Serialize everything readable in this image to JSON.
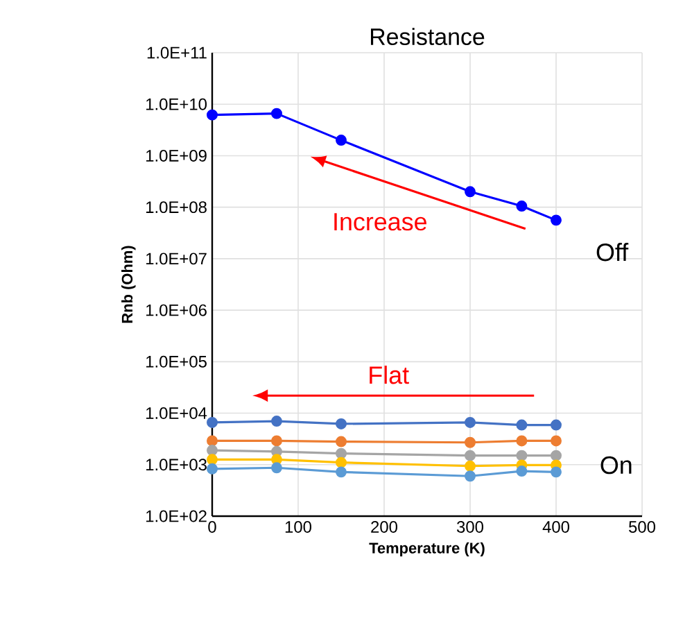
{
  "chart_data": {
    "type": "line",
    "title": "Resistance",
    "xlabel": "Temperature (K)",
    "ylabel": "Rnb (Ohm)",
    "x": [
      0,
      75,
      150,
      300,
      360,
      400
    ],
    "series": [
      {
        "color": "#0000ff",
        "values": [
          6200000000.0,
          6600000000.0,
          2000000000.0,
          200000000.0,
          105000000.0,
          56000000.0
        ]
      },
      {
        "color": "#4472c4",
        "values": [
          6600,
          7000,
          6200,
          6600,
          5900,
          5900
        ]
      },
      {
        "color": "#ed7d31",
        "values": [
          2900,
          2900,
          2800,
          2700,
          2900,
          2900
        ]
      },
      {
        "color": "#a5a5a5",
        "values": [
          1900,
          1800,
          1650,
          1500,
          1500,
          1500
        ]
      },
      {
        "color": "#ffc000",
        "values": [
          1260,
          1260,
          1100,
          940,
          980,
          980
        ]
      },
      {
        "color": "#5b9bd5",
        "values": [
          830,
          870,
          720,
          600,
          750,
          720
        ]
      }
    ],
    "xlim": [
      0,
      500
    ],
    "xticks": [
      0,
      100,
      200,
      300,
      400,
      500
    ],
    "ylim": [
      100,
      100000000000.0
    ],
    "yticks": [
      {
        "value": 100,
        "label": "1.0E+02"
      },
      {
        "value": 1000,
        "label": "1.0E+03"
      },
      {
        "value": 10000,
        "label": "1.0E+04"
      },
      {
        "value": 100000,
        "label": "1.0E+05"
      },
      {
        "value": 1000000,
        "label": "1.0E+06"
      },
      {
        "value": 10000000,
        "label": "1.0E+07"
      },
      {
        "value": 100000000,
        "label": "1.0E+08"
      },
      {
        "value": 1000000000,
        "label": "1.0E+09"
      },
      {
        "value": 10000000000,
        "label": "1.0E+10"
      },
      {
        "value": 100000000000,
        "label": "1.0E+11"
      }
    ],
    "annotations": [
      "Increase",
      "Off",
      "Flat",
      "On"
    ],
    "log": "y",
    "grid": true,
    "marker": "circle",
    "line_style": "solid"
  }
}
